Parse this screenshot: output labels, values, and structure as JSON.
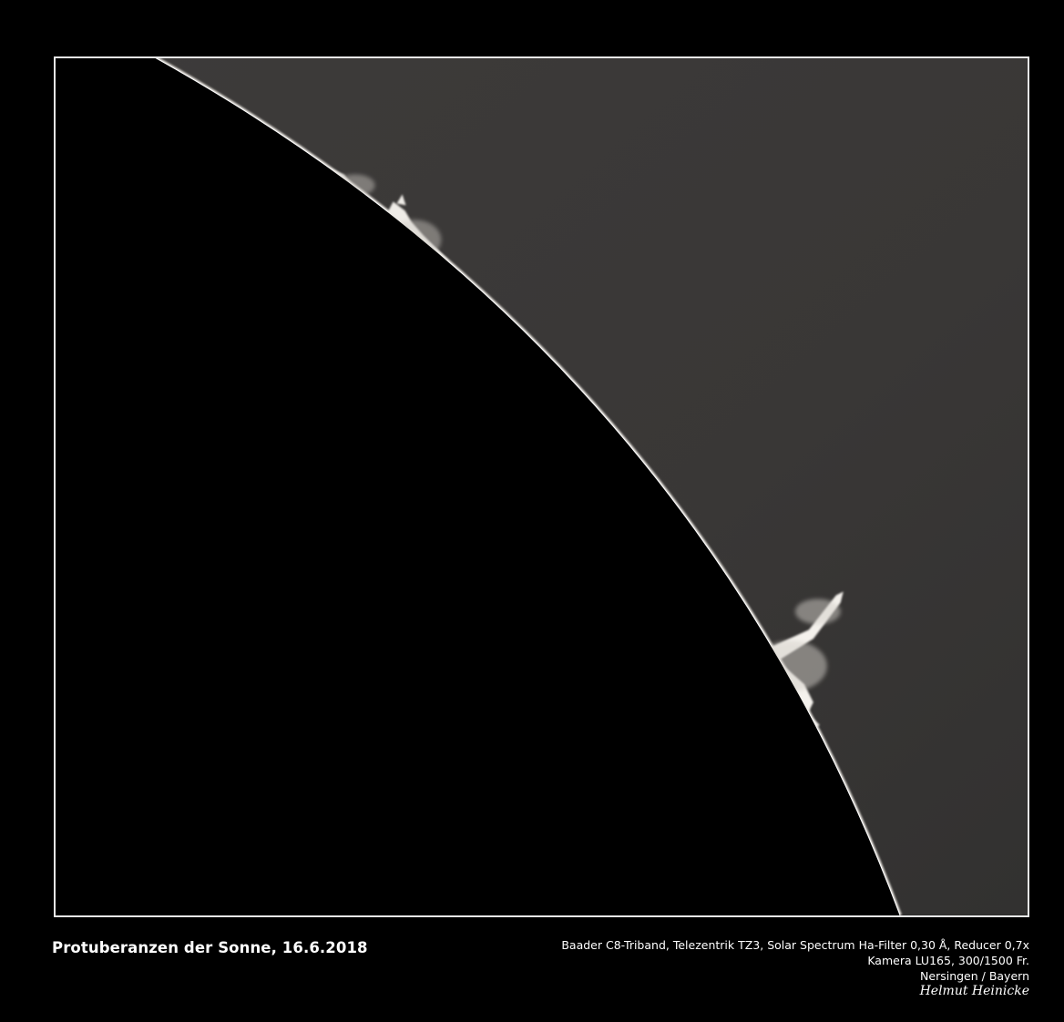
{
  "image": {
    "description_icon": "solar-limb-prominence-photo",
    "colors": {
      "background": "#000000",
      "frame_border": "#e8e8e8",
      "sky": "#3a3837",
      "prominence": "#f2f0ec",
      "caption_text": "#ffffff"
    }
  },
  "caption": {
    "title": "Protuberanzen der Sonne, 16.6.2018",
    "equipment_line": "Baader  C8-Triband,  Telezentrik TZ3, Solar Spectrum Ha-Filter 0,30 Å, Reducer 0,7x",
    "camera_line": "Kamera LU165, 300/1500 Fr.",
    "location_line": "Nersingen / Bayern",
    "author": "Helmut Heinicke"
  }
}
